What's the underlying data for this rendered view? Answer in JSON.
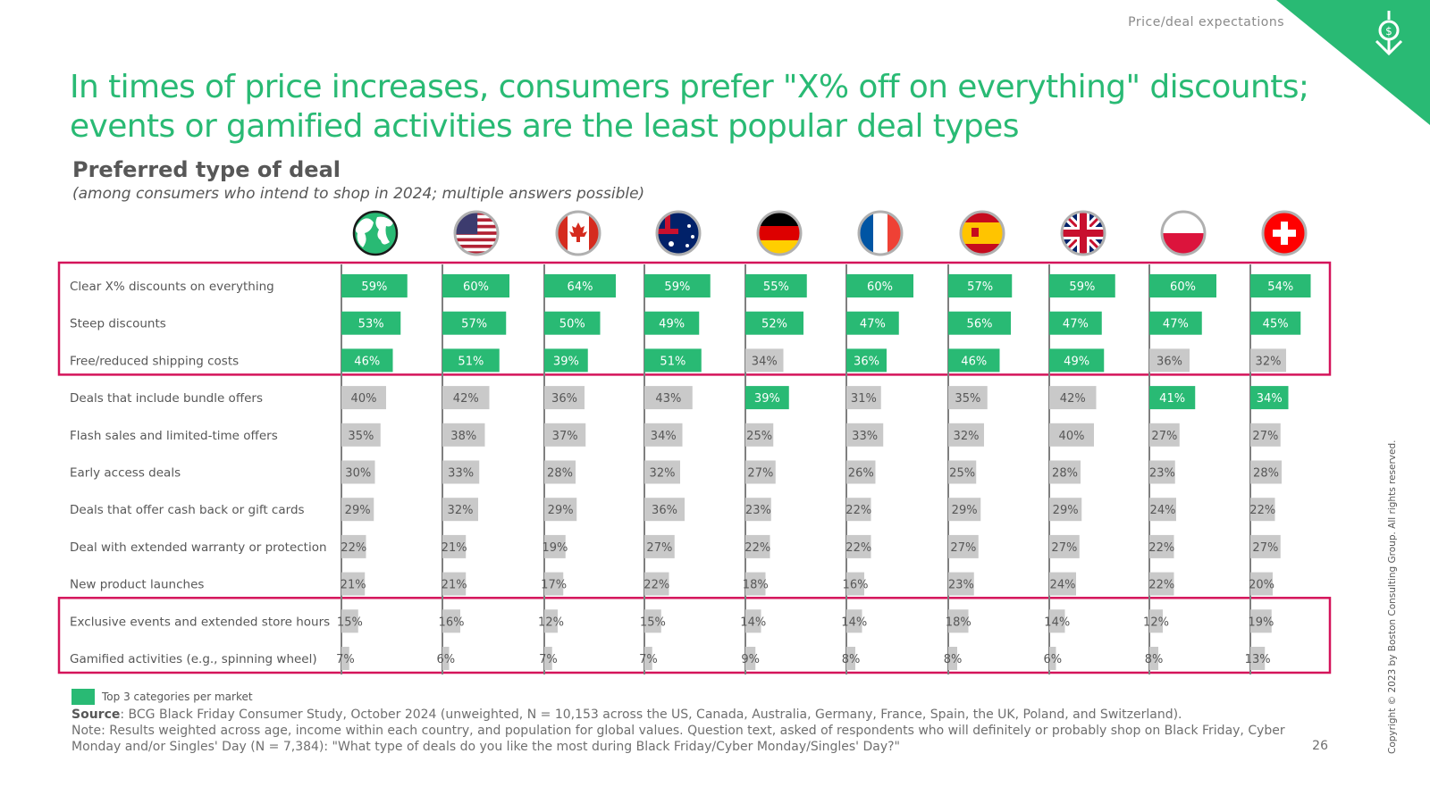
{
  "header": {
    "section": "Price/deal expectations",
    "title": "In times of price increases, consumers prefer \"X% off on everything\" discounts; events or gamified activities are the least popular deal types",
    "icon": "download-dollar-icon"
  },
  "colors": {
    "accent": "#29ba74",
    "other": "#c9c9c9",
    "highlight_box": "#d4145a",
    "axis": "#7f7f7f"
  },
  "chart_data": {
    "type": "bar",
    "title": "Preferred type of deal",
    "subtitle": "(among consumers who intend to shop in 2024; multiple answers possible)",
    "unit": "%",
    "markets": [
      {
        "icon": "globe-icon"
      },
      {
        "icon": "flag-us-icon"
      },
      {
        "icon": "flag-canada-icon"
      },
      {
        "icon": "flag-australia-icon"
      },
      {
        "icon": "flag-germany-icon"
      },
      {
        "icon": "flag-france-icon"
      },
      {
        "icon": "flag-spain-icon"
      },
      {
        "icon": "flag-uk-icon"
      },
      {
        "icon": "flag-poland-icon"
      },
      {
        "icon": "flag-switzerland-icon"
      }
    ],
    "categories": [
      "Clear X% discounts on everything",
      "Steep discounts",
      "Free/reduced shipping costs",
      "Deals that include bundle offers",
      "Flash sales and limited-time offers",
      "Early access deals",
      "Deals that offer cash back or gift cards",
      "Deal with extended warranty or protection",
      "New product launches",
      "Exclusive events and extended store hours",
      "Gamified activities (e.g., spinning wheel)"
    ],
    "values": [
      [
        59,
        60,
        64,
        59,
        55,
        60,
        57,
        59,
        60,
        54
      ],
      [
        53,
        57,
        50,
        49,
        52,
        47,
        56,
        47,
        47,
        45
      ],
      [
        46,
        51,
        39,
        51,
        34,
        36,
        46,
        49,
        36,
        32
      ],
      [
        40,
        42,
        36,
        43,
        39,
        31,
        35,
        42,
        41,
        34
      ],
      [
        35,
        38,
        37,
        34,
        25,
        33,
        32,
        40,
        27,
        27
      ],
      [
        30,
        33,
        28,
        32,
        27,
        26,
        25,
        28,
        23,
        28
      ],
      [
        29,
        32,
        29,
        36,
        23,
        22,
        29,
        29,
        24,
        22
      ],
      [
        22,
        21,
        19,
        27,
        22,
        22,
        27,
        27,
        22,
        27
      ],
      [
        21,
        21,
        17,
        22,
        18,
        16,
        23,
        24,
        22,
        20
      ],
      [
        15,
        16,
        12,
        15,
        14,
        14,
        18,
        14,
        12,
        19
      ],
      [
        7,
        6,
        7,
        7,
        9,
        8,
        8,
        6,
        8,
        13
      ]
    ],
    "top3": [
      [
        1,
        1,
        1,
        1,
        1,
        1,
        1,
        1,
        1,
        1
      ],
      [
        1,
        1,
        1,
        1,
        1,
        1,
        1,
        1,
        1,
        1
      ],
      [
        1,
        1,
        1,
        1,
        0,
        1,
        1,
        1,
        0,
        0
      ],
      [
        0,
        0,
        0,
        0,
        1,
        0,
        0,
        0,
        1,
        1
      ],
      [
        0,
        0,
        0,
        0,
        0,
        0,
        0,
        0,
        0,
        0
      ],
      [
        0,
        0,
        0,
        0,
        0,
        0,
        0,
        0,
        0,
        0
      ],
      [
        0,
        0,
        0,
        0,
        0,
        0,
        0,
        0,
        0,
        0
      ],
      [
        0,
        0,
        0,
        0,
        0,
        0,
        0,
        0,
        0,
        0
      ],
      [
        0,
        0,
        0,
        0,
        0,
        0,
        0,
        0,
        0,
        0
      ],
      [
        0,
        0,
        0,
        0,
        0,
        0,
        0,
        0,
        0,
        0
      ],
      [
        0,
        0,
        0,
        0,
        0,
        0,
        0,
        0,
        0,
        0
      ]
    ],
    "highlight_groups": [
      [
        0,
        2
      ],
      [
        9,
        10
      ]
    ],
    "legend": "Top 3 categories per market"
  },
  "footer": {
    "source_label": "Source",
    "source": ": BCG Black Friday Consumer Study, October 2024 (unweighted, N = 10,153 across the US, Canada, Australia, Germany, France, Spain, the UK, Poland, and Switzerland).",
    "note": "Note: Results weighted across age, income within each country, and population for global values. Question text, asked of respondents who will definitely or probably shop on Black Friday, Cyber Monday and/or Singles' Day (N = 7,384): \"What type of deals do you like the most during Black Friday/Cyber Monday/Singles' Day?\"",
    "page": "26",
    "copyright": "Copyright © 2023 by Boston Consulting Group. All rights reserved."
  }
}
